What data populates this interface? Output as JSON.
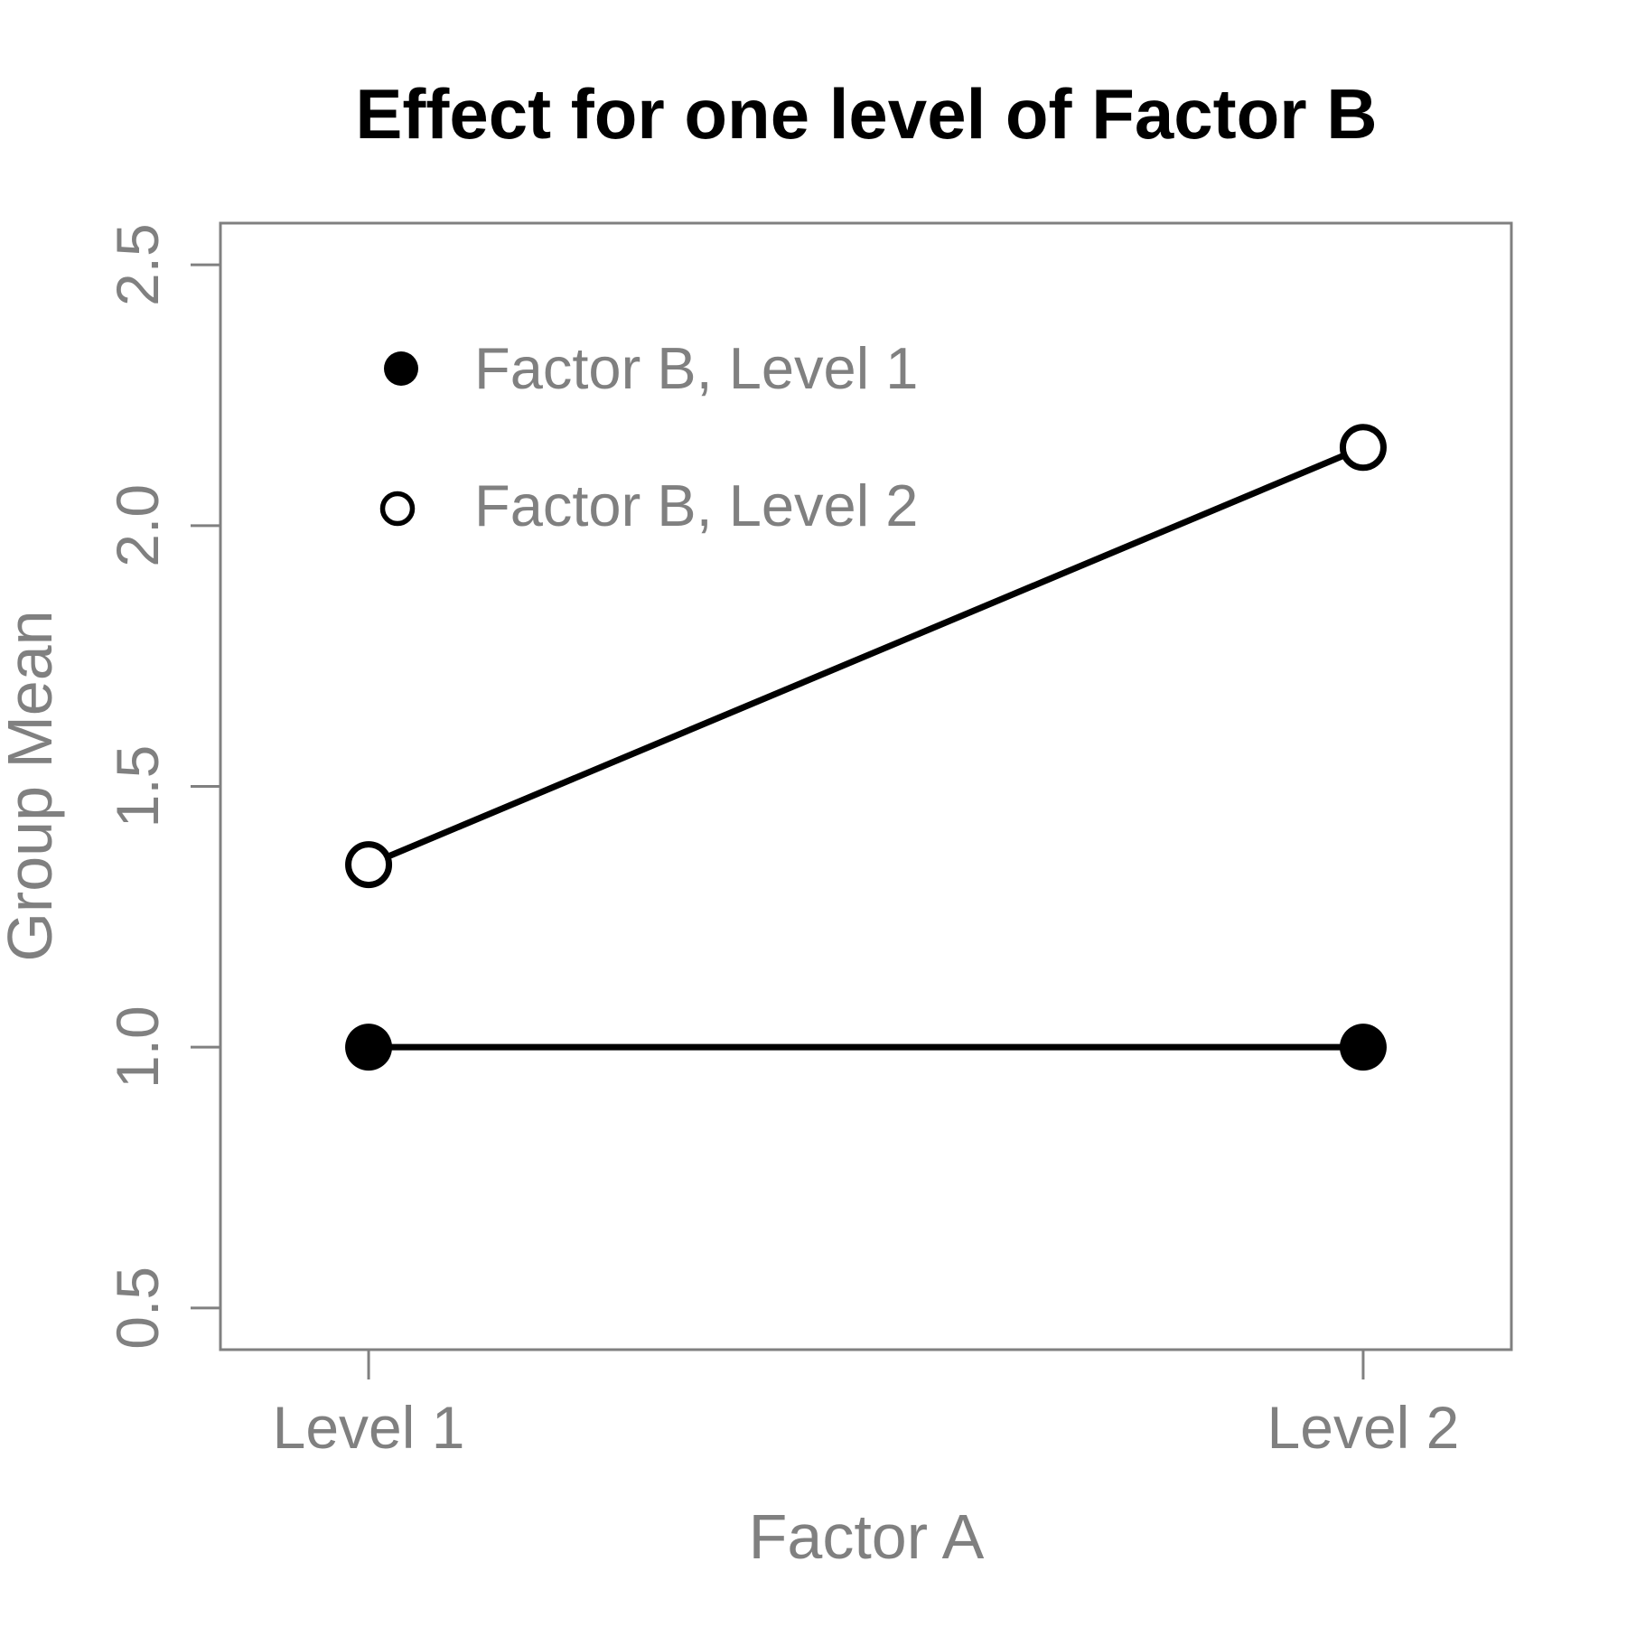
{
  "title": "Effect for one level of Factor B",
  "chart_data": {
    "type": "line",
    "title": "Effect for one level of Factor B",
    "xlabel": "Factor A",
    "ylabel": "Group Mean",
    "categories": [
      "Level 1",
      "Level 2"
    ],
    "series": [
      {
        "name": "Factor B, Level 1",
        "marker": "filled-circle",
        "values": [
          1.0,
          1.0
        ]
      },
      {
        "name": "Factor B, Level 2",
        "marker": "open-circle",
        "values": [
          1.35,
          2.15
        ]
      }
    ],
    "ylim": [
      0.42,
      2.58
    ],
    "yticks": [
      0.5,
      1.0,
      1.5,
      2.0,
      2.5
    ],
    "ytick_labels": [
      "0.5",
      "1.0",
      "1.5",
      "2.0",
      "2.5"
    ],
    "grid": false,
    "legend_position": "top-left-inside",
    "colors": {
      "series": "#000000",
      "axis": "#808080",
      "title": "#000000",
      "background": "#ffffff"
    }
  }
}
